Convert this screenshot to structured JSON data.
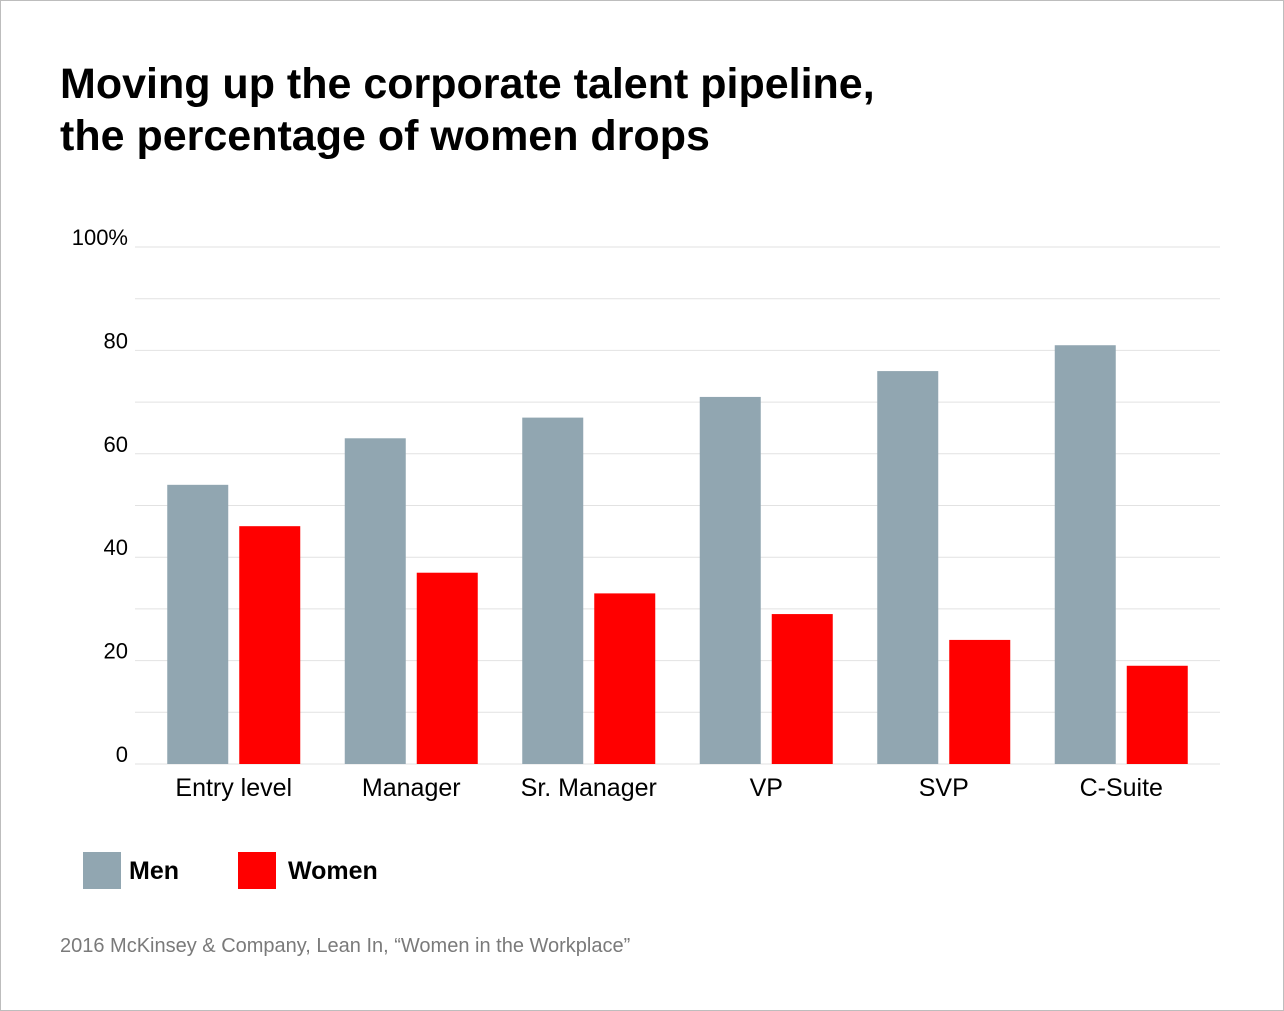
{
  "title_lines": [
    "Moving up the corporate talent pipeline,",
    "the percentage of women drops"
  ],
  "source": "2016 McKinsey & Company, Lean In, “Women in the Workplace”",
  "colors": {
    "men": "#91a6b1",
    "women": "#ff0000",
    "grid": "#e2e2e2",
    "axis_text": "#000000"
  },
  "chart_data": {
    "type": "bar",
    "title": "Moving up the corporate talent pipeline, the percentage of women drops",
    "categories": [
      "Entry level",
      "Manager",
      "Sr. Manager",
      "VP",
      "SVP",
      "C-Suite"
    ],
    "series": [
      {
        "name": "Men",
        "color": "#91a6b1",
        "values": [
          54,
          63,
          67,
          71,
          76,
          81
        ]
      },
      {
        "name": "Women",
        "color": "#ff0000",
        "values": [
          46,
          37,
          33,
          29,
          24,
          19
        ]
      }
    ],
    "y_ticks": [
      {
        "value": 0,
        "label": "0"
      },
      {
        "value": 20,
        "label": "20"
      },
      {
        "value": 40,
        "label": "40"
      },
      {
        "value": 60,
        "label": "60"
      },
      {
        "value": 80,
        "label": "80"
      },
      {
        "value": 100,
        "label": "100%"
      }
    ],
    "ylim": [
      0,
      100
    ],
    "grid": true,
    "legend_position": "bottom-left"
  }
}
